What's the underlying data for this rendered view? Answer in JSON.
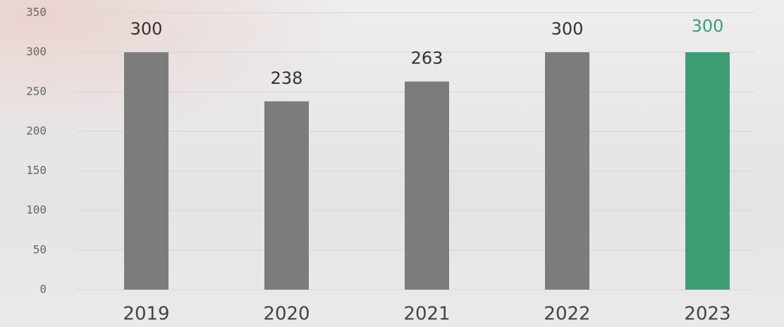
{
  "chart_data": {
    "type": "bar",
    "categories": [
      "2019",
      "2020",
      "2021",
      "2022",
      "2023"
    ],
    "values": [
      300,
      238,
      263,
      300,
      300
    ],
    "colors": [
      "#7c7c7c",
      "#7c7c7c",
      "#7c7c7c",
      "#7c7c7c",
      "#3d9e76"
    ],
    "value_label_colors": [
      "#333333",
      "#333333",
      "#333333",
      "#333333",
      "#3d9e76"
    ],
    "ylim": [
      0,
      350
    ],
    "yticks": [
      0,
      50,
      100,
      150,
      200,
      250,
      300,
      350
    ],
    "grid": true
  }
}
